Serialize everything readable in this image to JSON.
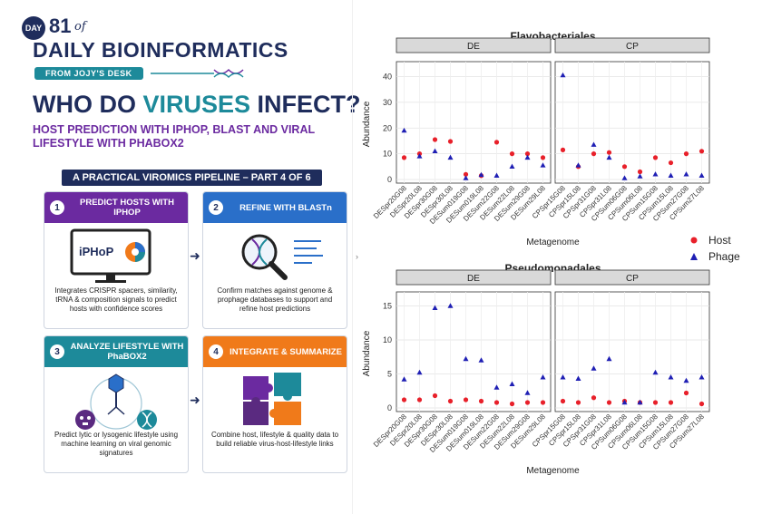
{
  "poster": {
    "day_badge": "DAY",
    "day_number": "81",
    "day_of": "of",
    "series_title": "DAILY BIOINFORMATICS",
    "from": "FROM JOJY'S DESK",
    "headline_part1": "WHO DO ",
    "headline_accent": "VIRUSES",
    "headline_part2": " INFECT?",
    "subhead": "HOST PREDICTION WITH IPHOP, BLAST AND VIRAL LIFESTYLE WITH PHABOX2",
    "banner": "A PRACTICAL VIROMICS PIPELINE – PART 4 OF 6",
    "colors": {
      "navy": "#1f2d5c",
      "teal": "#1d8a9a",
      "purple": "#6b2aa0",
      "blue": "#2a6fc9",
      "orange": "#f07a1a"
    },
    "cards": [
      {
        "num": "1",
        "title": "PREDICT HOSTS WITH IPHOP",
        "text": "Integrates CRISPR spacers, similarity, tRNA & composition signals to predict hosts with confidence scores",
        "illus_label": "iPHoP",
        "icon": "monitor-icon"
      },
      {
        "num": "2",
        "title": "REFINE WITH BLASTn",
        "text": "Confirm matches against genome & prophage databases to support and refine host predictions",
        "icon": "magnifier-dna-icon"
      },
      {
        "num": "3",
        "title": "ANALYZE LIFESTYLE WITH PhaBOX2",
        "text": "Predict lytic or lysogenic lifestyle using machine learning on viral genomic signatures",
        "icon": "phage-icon"
      },
      {
        "num": "4",
        "title": "INTEGRATE & SUMMARIZE",
        "text": "Combine host, lifestyle & quality data to build reliable virus-host-lifestyle links",
        "icon": "puzzle-icon"
      }
    ]
  },
  "legend": {
    "items": [
      {
        "label": "Host",
        "color": "#e8202a",
        "shape": "circle"
      },
      {
        "label": "Phage",
        "color": "#1f1fb4",
        "shape": "triangle"
      }
    ]
  },
  "chart_data": [
    {
      "type": "scatter",
      "title": "Flavobacteriales",
      "xlabel": "Metagenome",
      "ylabel": "Abundance",
      "ylim": [
        0,
        43
      ],
      "yticks": [
        0,
        10,
        20,
        30,
        40
      ],
      "grid": true,
      "legend_position": "right",
      "facets": [
        {
          "name": "DE",
          "categories": [
            "DESpr20G08",
            "DESpr20L08",
            "DESpr30G08",
            "DESpr30L08",
            "DESum019G08",
            "DESum019L08",
            "DESum22G08",
            "DESum22L08",
            "DESum29G08",
            "DESum29L08"
          ],
          "series": [
            {
              "name": "Host",
              "values": [
                8.5,
                10,
                15.5,
                14.8,
                2,
                1.5,
                14.5,
                10,
                10,
                8.5
              ]
            },
            {
              "name": "Phage",
              "values": [
                19,
                9,
                11,
                8.5,
                0.5,
                1.8,
                1.5,
                5,
                8.5,
                5.5
              ]
            }
          ]
        },
        {
          "name": "CP",
          "categories": [
            "CPSpr15G08",
            "CPSpr15L08",
            "CPSpr31G08",
            "CPSpr31L08",
            "CPSum06G08",
            "CPSum06L08",
            "CPSum15G08",
            "CPSum15L08",
            "CPSum27G08",
            "CPSum27L08"
          ],
          "series": [
            {
              "name": "Host",
              "values": [
                11.5,
                5,
                10,
                10.5,
                5,
                3,
                8.5,
                6.5,
                10,
                11
              ]
            },
            {
              "name": "Phage",
              "values": [
                40.5,
                5.5,
                13.5,
                8.5,
                0.5,
                1.2,
                2,
                1.5,
                2,
                1.5
              ]
            }
          ]
        }
      ]
    },
    {
      "type": "scatter",
      "title": "Pseudomonadales",
      "xlabel": "Metagenome",
      "ylabel": "Abundance",
      "ylim": [
        0,
        16
      ],
      "yticks": [
        0,
        5,
        10,
        15
      ],
      "grid": true,
      "legend_position": "right",
      "facets": [
        {
          "name": "DE",
          "categories": [
            "DESpr20G08",
            "DESpr20L08",
            "DESpr30G08",
            "DESpr30L08",
            "DESum019G08",
            "DESum019L08",
            "DESum22G08",
            "DESum22L08",
            "DESum29G08",
            "DESum29L08"
          ],
          "series": [
            {
              "name": "Host",
              "values": [
                1.2,
                1.2,
                1.8,
                1,
                1.2,
                1,
                0.8,
                0.6,
                0.8,
                0.8
              ]
            },
            {
              "name": "Phage",
              "values": [
                4.2,
                5.2,
                14.7,
                15,
                7.2,
                7,
                3,
                3.5,
                2.2,
                4.5
              ]
            }
          ]
        },
        {
          "name": "CP",
          "categories": [
            "CPSpr15G08",
            "CPSpr15L08",
            "CPSpr31G08",
            "CPSpr31L08",
            "CPSum06G08",
            "CPSum06L08",
            "CPSum15G08",
            "CPSum15L08",
            "CPSum27G08",
            "CPSum27L08"
          ],
          "series": [
            {
              "name": "Host",
              "values": [
                1,
                0.8,
                1.5,
                0.8,
                1,
                0.8,
                0.8,
                0.8,
                2.2,
                0.6
              ]
            },
            {
              "name": "Phage",
              "values": [
                4.5,
                4.3,
                5.8,
                7.2,
                0.8,
                0.8,
                5.2,
                4.5,
                4,
                4.5
              ]
            }
          ]
        }
      ]
    }
  ]
}
